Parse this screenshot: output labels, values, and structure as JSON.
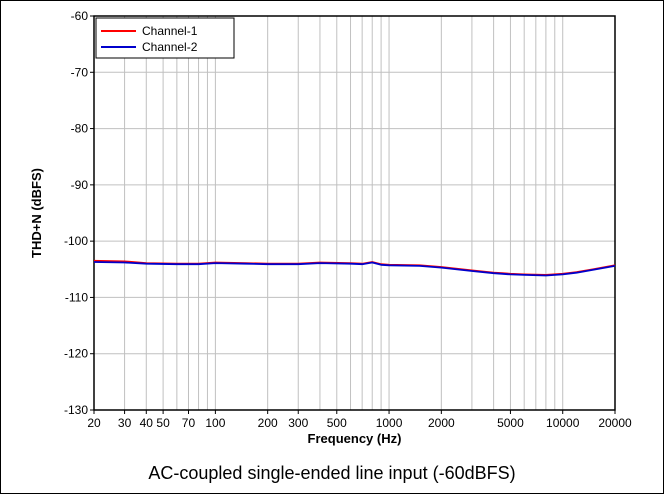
{
  "chart_data": {
    "type": "line",
    "title": "",
    "caption": "AC-coupled single-ended line input (-60dBFS)",
    "xlabel": "Frequency (Hz)",
    "ylabel": "THD+N (dBFS)",
    "xscale": "log",
    "xlim": [
      20,
      20000
    ],
    "ylim": [
      -130,
      -60
    ],
    "grid": true,
    "legend_position": "top-left",
    "x_ticks": [
      20,
      30,
      40,
      50,
      70,
      100,
      200,
      300,
      500,
      1000,
      2000,
      5000,
      10000,
      20000
    ],
    "x_tick_labels": [
      "20",
      "30",
      "40",
      "50",
      "70",
      "100",
      "200",
      "300",
      "500",
      "1000",
      "2000",
      "5000",
      "10000",
      "20000"
    ],
    "y_ticks": [
      -130,
      -120,
      -110,
      -100,
      -90,
      -80,
      -70,
      -60
    ],
    "y_tick_labels": [
      "-130",
      "-120",
      "-110",
      "-100",
      "-90",
      "-80",
      "-70",
      "-60"
    ],
    "series": [
      {
        "name": "Channel-1",
        "color": "#ff0000",
        "x": [
          20,
          30,
          40,
          60,
          80,
          100,
          150,
          200,
          300,
          400,
          600,
          700,
          800,
          900,
          1000,
          1500,
          2000,
          3000,
          4000,
          4500,
          5000,
          6000,
          8000,
          10000,
          12000,
          15000,
          20000
        ],
        "y": [
          -103.5,
          -103.6,
          -103.9,
          -104,
          -104,
          -103.8,
          -103.9,
          -104,
          -104,
          -103.8,
          -103.9,
          -104,
          -103.7,
          -104.1,
          -104.2,
          -104.3,
          -104.6,
          -105.2,
          -105.6,
          -105.7,
          -105.8,
          -105.9,
          -106,
          -105.8,
          -105.5,
          -105,
          -104.3
        ]
      },
      {
        "name": "Channel-2",
        "color": "#0000cc",
        "x": [
          20,
          30,
          40,
          60,
          80,
          100,
          150,
          200,
          300,
          400,
          600,
          700,
          800,
          900,
          1000,
          1500,
          2000,
          3000,
          4000,
          4500,
          5000,
          6000,
          8000,
          10000,
          12000,
          15000,
          20000
        ],
        "y": [
          -103.7,
          -103.8,
          -104,
          -104.1,
          -104.1,
          -103.9,
          -104,
          -104.1,
          -104.1,
          -103.9,
          -104,
          -104.1,
          -103.8,
          -104.2,
          -104.3,
          -104.4,
          -104.7,
          -105.3,
          -105.7,
          -105.8,
          -105.9,
          -106,
          -106.1,
          -105.9,
          -105.6,
          -105.1,
          -104.4
        ]
      }
    ]
  }
}
